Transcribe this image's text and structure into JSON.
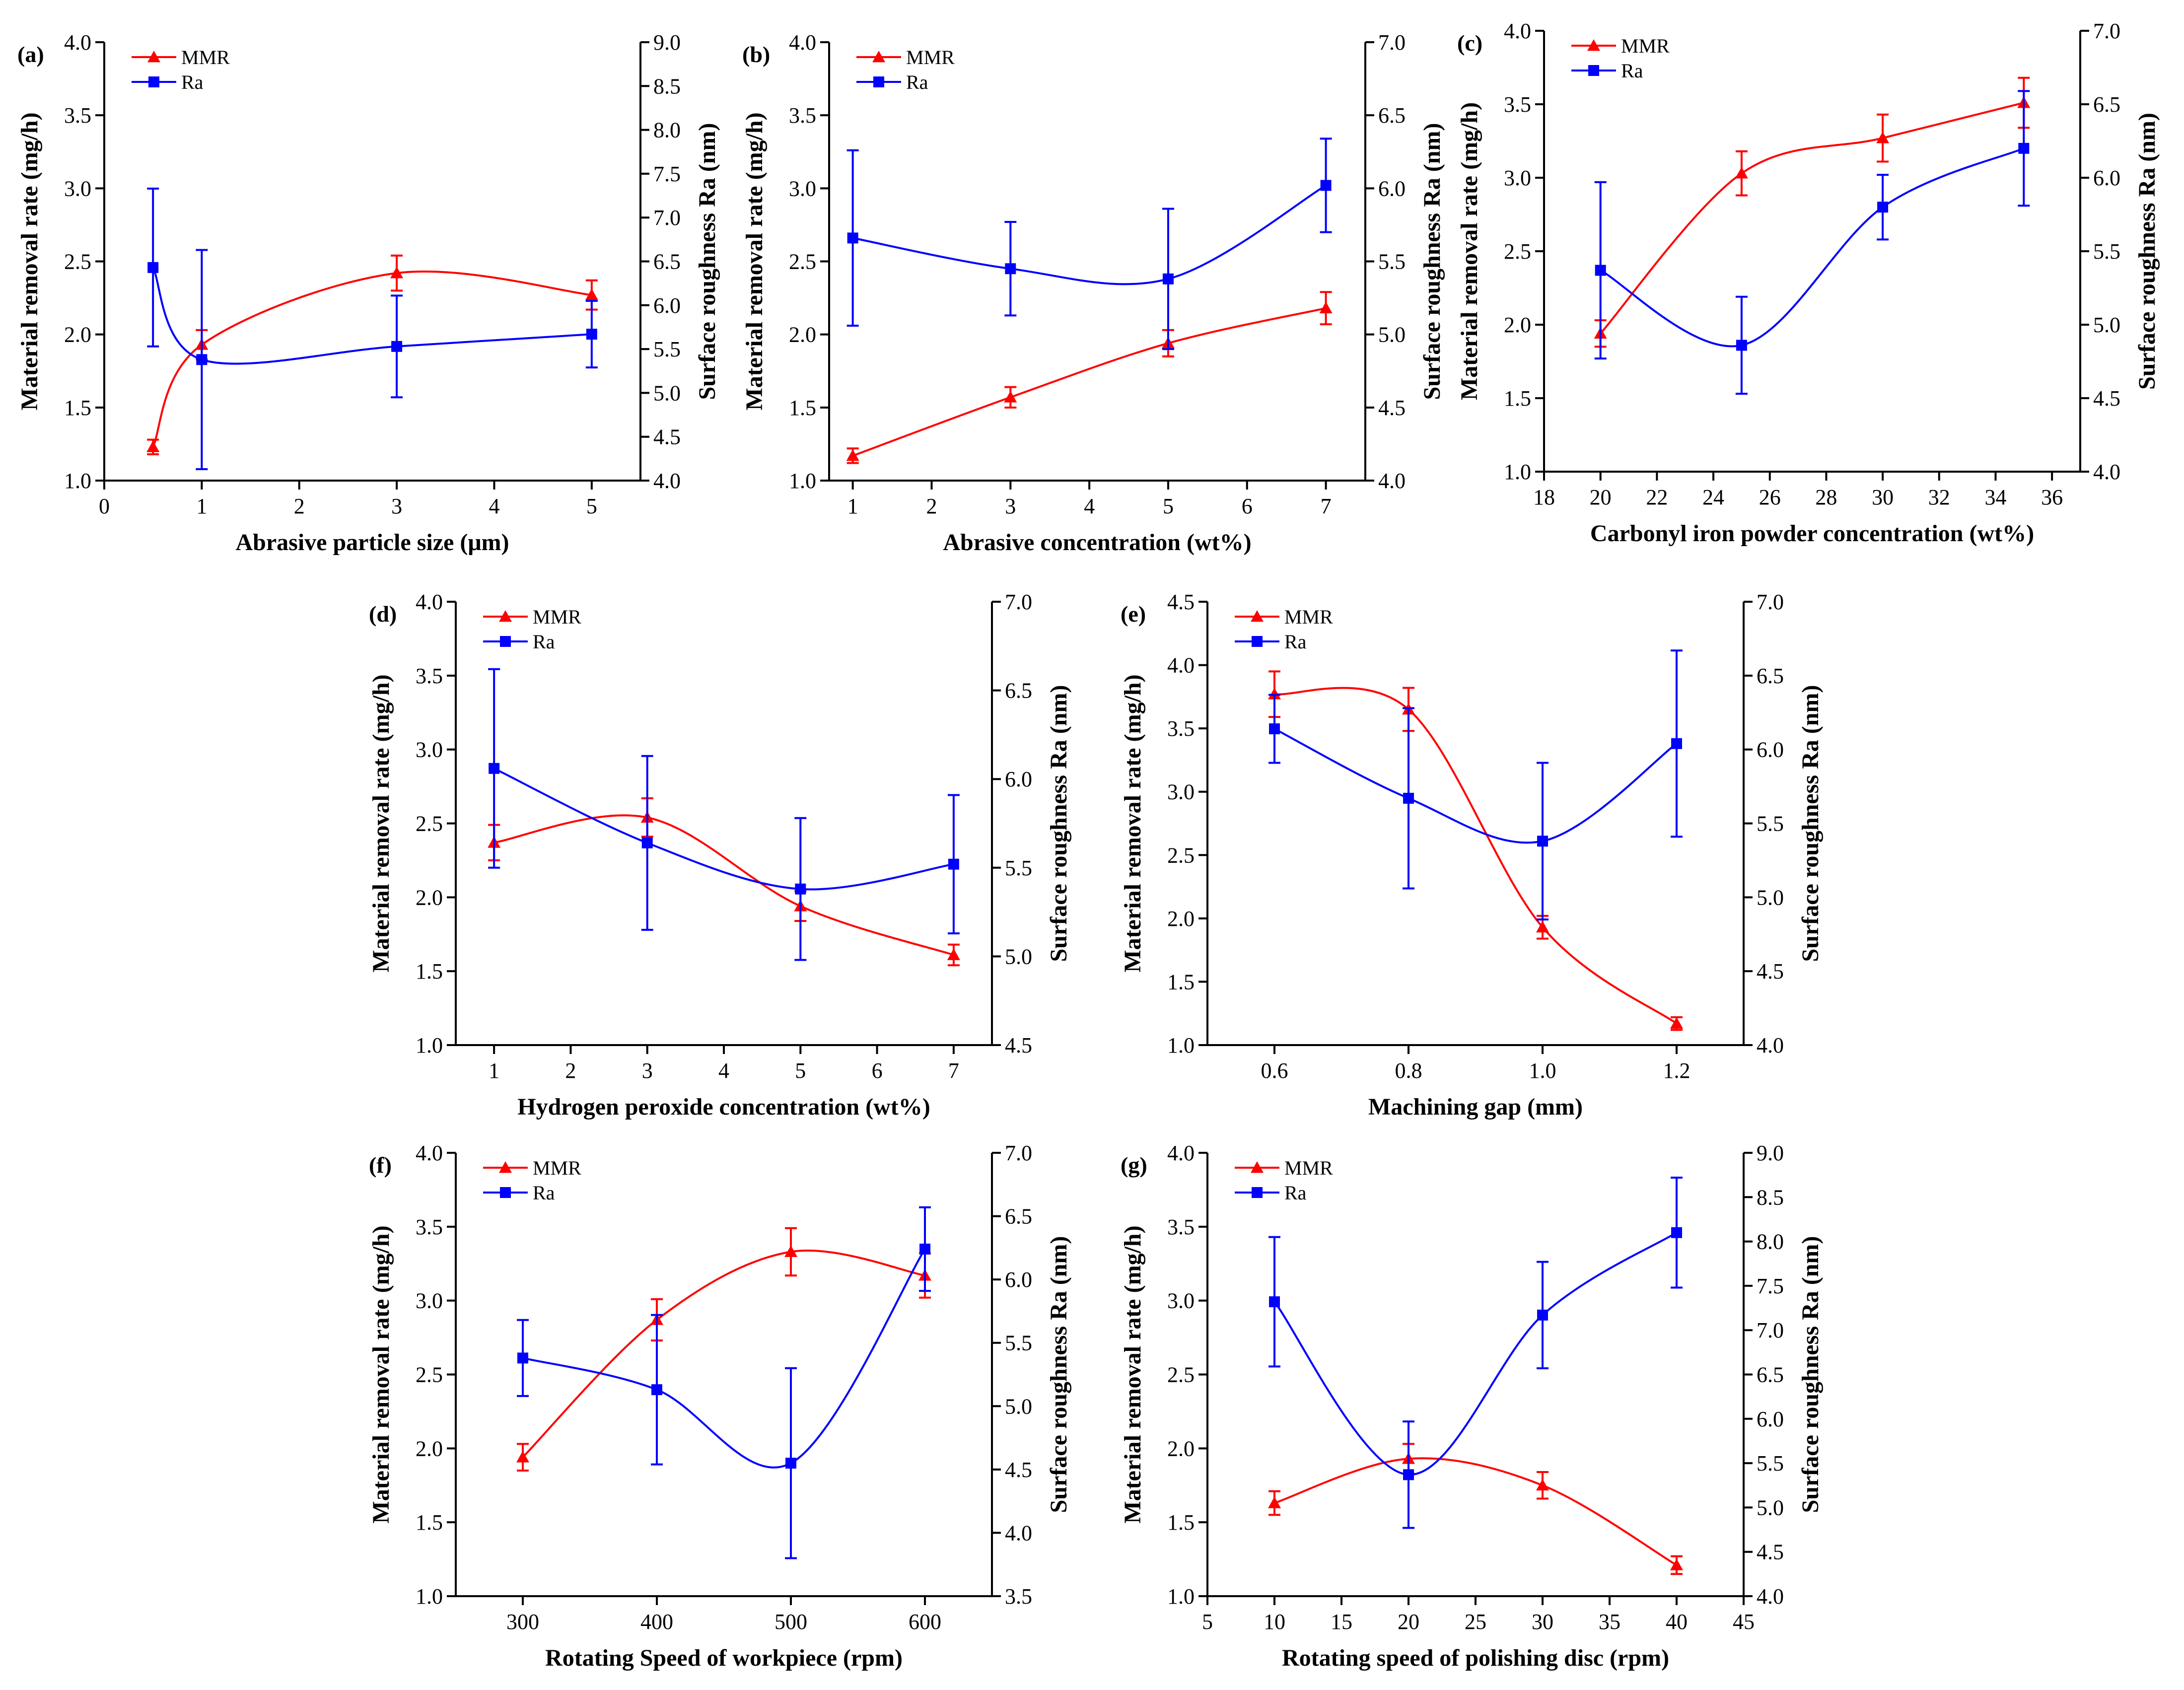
{
  "colors": {
    "mmr": "#ff0000",
    "ra": "#0000ff",
    "axis": "#000000"
  },
  "chart_data": [
    {
      "panel": "(a)",
      "type": "line",
      "xlabel": "Abrasive particle size (μm)",
      "ylabel_left": "Material removal rate (mg/h)",
      "ylabel_right": "Surface roughness Ra (nm)",
      "xlim": [
        0,
        5.5
      ],
      "xticks": [
        0,
        1,
        2,
        3,
        4,
        5
      ],
      "ylim_left": [
        1.0,
        4.0
      ],
      "yticks_left": [
        1.0,
        1.5,
        2.0,
        2.5,
        3.0,
        3.5,
        4.0
      ],
      "ylim_right": [
        4.0,
        9.0
      ],
      "yticks_right": [
        4.0,
        4.5,
        5.0,
        5.5,
        6.0,
        6.5,
        7.0,
        7.5,
        8.0,
        8.5,
        9.0
      ],
      "legend": [
        "MMR",
        "Ra"
      ],
      "x": [
        0.5,
        1,
        3,
        5
      ],
      "series": [
        {
          "name": "MMR",
          "axis": "left",
          "marker": "triangle",
          "values": [
            1.23,
            1.93,
            2.42,
            2.27
          ],
          "err": [
            0.05,
            0.1,
            0.12,
            0.1
          ]
        },
        {
          "name": "Ra",
          "axis": "right",
          "marker": "square",
          "values": [
            6.43,
            5.38,
            5.53,
            5.67
          ],
          "err": [
            0.9,
            1.25,
            0.58,
            0.38
          ]
        }
      ]
    },
    {
      "panel": "(b)",
      "type": "line",
      "xlabel": "Abrasive concentration (wt%)",
      "ylabel_left": "Material removal rate (mg/h)",
      "ylabel_right": "Surface roughness Ra (nm)",
      "xlim": [
        0.7,
        7.5
      ],
      "xticks": [
        1,
        2,
        3,
        4,
        5,
        6,
        7
      ],
      "ylim_left": [
        1.0,
        4.0
      ],
      "yticks_left": [
        1.0,
        1.5,
        2.0,
        2.5,
        3.0,
        3.5,
        4.0
      ],
      "ylim_right": [
        4.0,
        7.0
      ],
      "yticks_right": [
        4.0,
        4.5,
        5.0,
        5.5,
        6.0,
        6.5,
        7.0
      ],
      "legend": [
        "MMR",
        "Ra"
      ],
      "x": [
        1,
        3,
        5,
        7
      ],
      "series": [
        {
          "name": "MMR",
          "axis": "left",
          "marker": "triangle",
          "values": [
            1.17,
            1.57,
            1.94,
            2.18
          ],
          "err": [
            0.05,
            0.07,
            0.09,
            0.11
          ]
        },
        {
          "name": "Ra",
          "axis": "right",
          "marker": "square",
          "values": [
            5.66,
            5.45,
            5.38,
            6.02
          ],
          "err": [
            0.6,
            0.32,
            0.48,
            0.32
          ]
        }
      ]
    },
    {
      "panel": "(c)",
      "type": "line",
      "xlabel": "Carbonyl iron powder concentration (wt%)",
      "ylabel_left": "Material removal rate (mg/h)",
      "ylabel_right": "Surface roughness Ra (nm)",
      "xlim": [
        18,
        37
      ],
      "xticks": [
        18,
        20,
        22,
        24,
        26,
        28,
        30,
        32,
        34,
        36
      ],
      "ylim_left": [
        1.0,
        4.0
      ],
      "yticks_left": [
        1.0,
        1.5,
        2.0,
        2.5,
        3.0,
        3.5,
        4.0
      ],
      "ylim_right": [
        4.0,
        7.0
      ],
      "yticks_right": [
        4.0,
        4.5,
        5.0,
        5.5,
        6.0,
        6.5,
        7.0
      ],
      "legend": [
        "MMR",
        "Ra"
      ],
      "x": [
        20,
        25,
        30,
        35
      ],
      "series": [
        {
          "name": "MMR",
          "axis": "left",
          "marker": "triangle",
          "values": [
            1.94,
            3.03,
            3.27,
            3.51
          ],
          "err": [
            0.09,
            0.15,
            0.16,
            0.17
          ]
        },
        {
          "name": "Ra",
          "axis": "right",
          "marker": "square",
          "values": [
            5.37,
            4.86,
            5.8,
            6.2
          ],
          "err": [
            0.6,
            0.33,
            0.22,
            0.39
          ]
        }
      ]
    },
    {
      "panel": "(d)",
      "type": "line",
      "xlabel": "Hydrogen peroxide concentration (wt%)",
      "ylabel_left": "Material removal rate (mg/h)",
      "ylabel_right": "Surface roughness Ra (nm)",
      "xlim": [
        0.5,
        7.5
      ],
      "xticks": [
        1,
        2,
        3,
        4,
        5,
        6,
        7
      ],
      "ylim_left": [
        1.0,
        4.0
      ],
      "yticks_left": [
        1.0,
        1.5,
        2.0,
        2.5,
        3.0,
        3.5,
        4.0
      ],
      "ylim_right": [
        4.5,
        7.0
      ],
      "yticks_right": [
        4.5,
        5.0,
        5.5,
        6.0,
        6.5,
        7.0
      ],
      "legend": [
        "MMR",
        "Ra"
      ],
      "x": [
        1,
        3,
        5,
        7
      ],
      "series": [
        {
          "name": "MMR",
          "axis": "left",
          "marker": "triangle",
          "values": [
            2.37,
            2.54,
            1.94,
            1.61
          ],
          "err": [
            0.12,
            0.13,
            0.1,
            0.07
          ]
        },
        {
          "name": "Ra",
          "axis": "right",
          "marker": "square",
          "values": [
            6.06,
            5.64,
            5.38,
            5.52
          ],
          "err": [
            0.56,
            0.49,
            0.4,
            0.39
          ]
        }
      ]
    },
    {
      "panel": "(e)",
      "type": "line",
      "xlabel": "Machining gap (mm)",
      "ylabel_left": "Material removal rate (mg/h)",
      "ylabel_right": "Surface roughness Ra (nm)",
      "xlim": [
        0.5,
        1.3
      ],
      "xticks": [
        0.6,
        0.8,
        1.0,
        1.2
      ],
      "ylim_left": [
        1.0,
        4.5
      ],
      "yticks_left": [
        1.0,
        1.5,
        2.0,
        2.5,
        3.0,
        3.5,
        4.0,
        4.5
      ],
      "ylim_right": [
        4.0,
        7.0
      ],
      "yticks_right": [
        4.0,
        4.5,
        5.0,
        5.5,
        6.0,
        6.5,
        7.0
      ],
      "legend": [
        "MMR",
        "Ra"
      ],
      "x": [
        0.6,
        0.8,
        1.0,
        1.2
      ],
      "series": [
        {
          "name": "MMR",
          "axis": "left",
          "marker": "triangle",
          "values": [
            3.77,
            3.65,
            1.93,
            1.17
          ],
          "err": [
            0.18,
            0.17,
            0.09,
            0.05
          ]
        },
        {
          "name": "Ra",
          "axis": "right",
          "marker": "square",
          "values": [
            6.14,
            5.67,
            5.38,
            6.04
          ],
          "err": [
            0.23,
            0.61,
            0.53,
            0.63
          ]
        }
      ]
    },
    {
      "panel": "(f)",
      "type": "line",
      "xlabel": "Rotating Speed of workpiece (rpm)",
      "ylabel_left": "Material removal rate (mg/h)",
      "ylabel_right": "Surface roughness Ra (nm)",
      "xlim": [
        250,
        650
      ],
      "xticks": [
        300,
        400,
        500,
        600
      ],
      "ylim_left": [
        1.0,
        4.0
      ],
      "yticks_left": [
        1.0,
        1.5,
        2.0,
        2.5,
        3.0,
        3.5,
        4.0
      ],
      "ylim_right": [
        3.5,
        7.0
      ],
      "yticks_right": [
        3.5,
        4.0,
        4.5,
        5.0,
        5.5,
        6.0,
        6.5,
        7.0
      ],
      "legend": [
        "MMR",
        "Ra"
      ],
      "x": [
        300,
        400,
        500,
        600
      ],
      "series": [
        {
          "name": "MMR",
          "axis": "left",
          "marker": "triangle",
          "values": [
            1.94,
            2.87,
            3.33,
            3.17
          ],
          "err": [
            0.09,
            0.14,
            0.16,
            0.15
          ]
        },
        {
          "name": "Ra",
          "axis": "right",
          "marker": "square",
          "values": [
            5.38,
            5.13,
            4.55,
            6.24
          ],
          "err": [
            0.3,
            0.59,
            0.75,
            0.33
          ]
        }
      ]
    },
    {
      "panel": "(g)",
      "type": "line",
      "xlabel": "Rotating speed of polishing disc (rpm)",
      "ylabel_left": "Material removal rate (mg/h)",
      "ylabel_right": "Surface roughness Ra (nm)",
      "xlim": [
        5,
        45
      ],
      "xticks": [
        5,
        10,
        15,
        20,
        25,
        30,
        35,
        40,
        45
      ],
      "ylim_left": [
        1.0,
        4.0
      ],
      "yticks_left": [
        1.0,
        1.5,
        2.0,
        2.5,
        3.0,
        3.5,
        4.0
      ],
      "ylim_right": [
        4.0,
        9.0
      ],
      "yticks_right": [
        4.0,
        4.5,
        5.0,
        5.5,
        6.0,
        6.5,
        7.0,
        7.5,
        8.0,
        8.5,
        9.0
      ],
      "legend": [
        "MMR",
        "Ra"
      ],
      "x": [
        10,
        20,
        30,
        40
      ],
      "series": [
        {
          "name": "MMR",
          "axis": "left",
          "marker": "triangle",
          "values": [
            1.63,
            1.93,
            1.75,
            1.21
          ],
          "err": [
            0.08,
            0.1,
            0.09,
            0.06
          ]
        },
        {
          "name": "Ra",
          "axis": "right",
          "marker": "square",
          "values": [
            7.32,
            5.37,
            7.17,
            8.1
          ],
          "err": [
            0.73,
            0.6,
            0.6,
            0.62
          ]
        }
      ]
    }
  ]
}
